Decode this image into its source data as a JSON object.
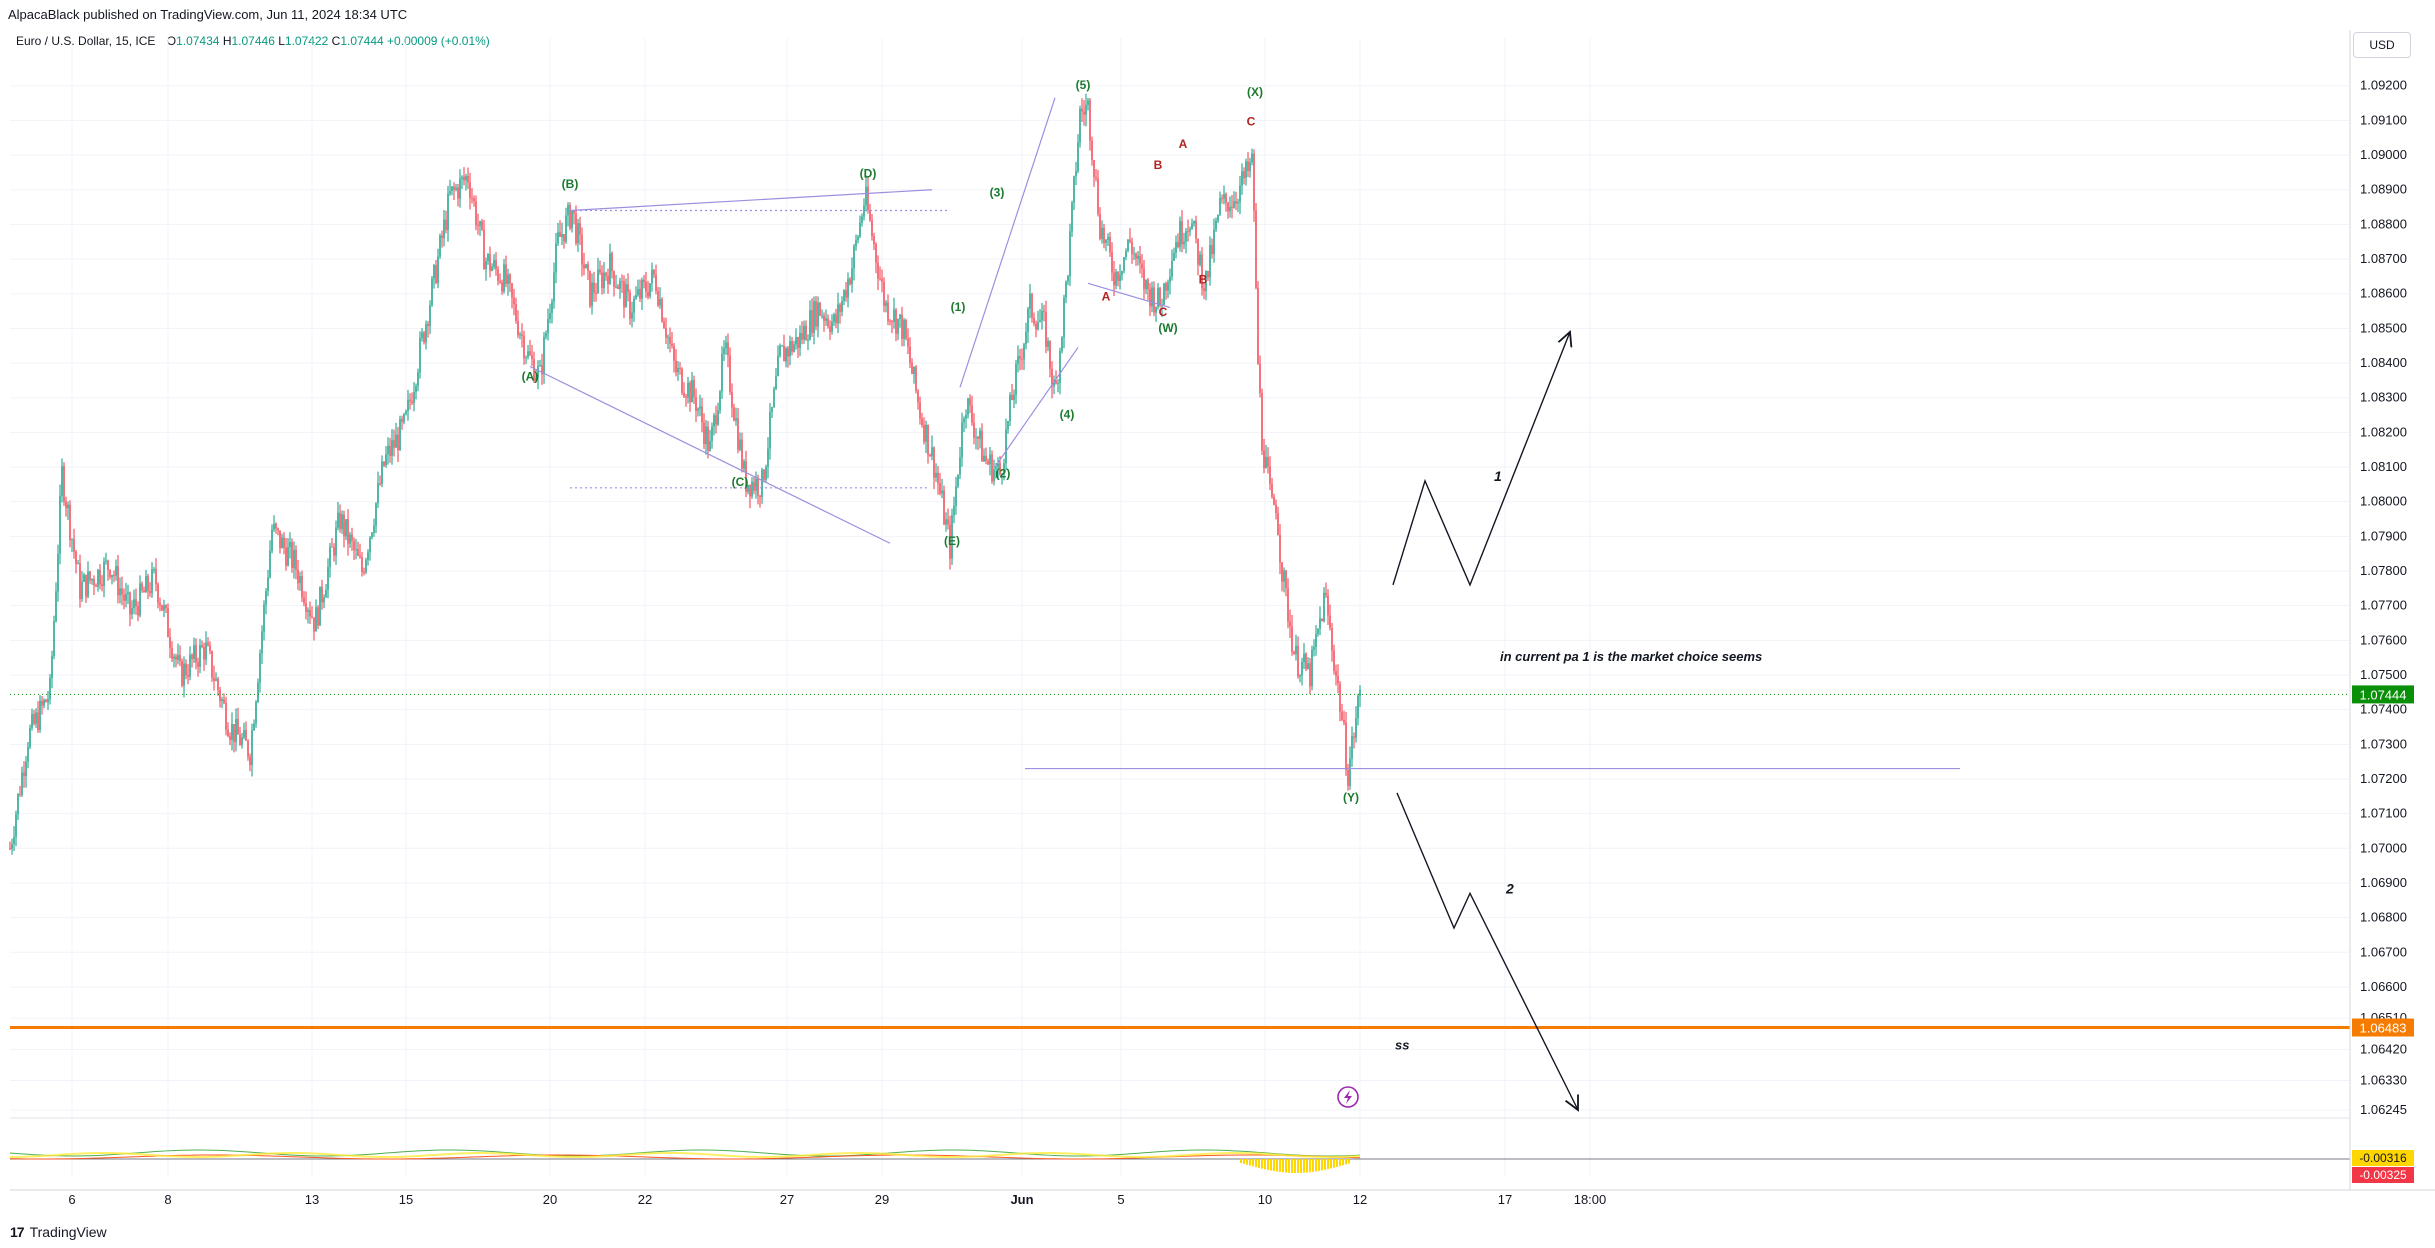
{
  "header": {
    "publisher": "AlpacaBlack published on TradingView.com, Jun 11, 2024 18:34 UTC",
    "symbol": "Euro / U.S. Dollar, 15, ICE",
    "ohlc": {
      "o_label": "O",
      "o": "1.07434",
      "h_label": "H",
      "h": "1.07446",
      "l_label": "L",
      "l": "1.07422",
      "c_label": "C",
      "c": "1.07444",
      "change": "+0.00009 (+0.01%)"
    },
    "currency": "USD"
  },
  "footer": {
    "logo": "17",
    "brand": "TradingView"
  },
  "colors": {
    "up": "#089981",
    "down": "#f23645",
    "wave_label": "#1b7a2f",
    "sub_wave_label": "#b22222",
    "trendline": "#9c8fe0",
    "orange_level": "#f57c00",
    "price_tag": "#0a8f08",
    "text": "#131722"
  },
  "chart_data": {
    "type": "candlestick",
    "symbol": "Euro / U.S. Dollar",
    "interval": "15",
    "ylim": [
      1.06245,
      1.0928
    ],
    "y_ticks": [
      "1.09200",
      "1.09100",
      "1.09000",
      "1.08900",
      "1.08800",
      "1.08700",
      "1.08600",
      "1.08500",
      "1.08400",
      "1.08300",
      "1.08200",
      "1.08100",
      "1.08000",
      "1.07900",
      "1.07800",
      "1.07700",
      "1.07600",
      "1.07500",
      "1.07400",
      "1.07300",
      "1.07200",
      "1.07100",
      "1.07000",
      "1.06900",
      "1.06800",
      "1.06700",
      "1.06600",
      "1.06510",
      "1.06420",
      "1.06330",
      "1.06245"
    ],
    "x_ticks": [
      "6",
      "8",
      "13",
      "15",
      "20",
      "22",
      "27",
      "29",
      "Jun",
      "5",
      "10",
      "12",
      "17",
      "18:00"
    ],
    "price_path": [
      [
        0,
        1.07
      ],
      [
        18,
        1.0732
      ],
      [
        40,
        1.0745
      ],
      [
        52,
        1.0808
      ],
      [
        70,
        1.0775
      ],
      [
        100,
        1.0782
      ],
      [
        120,
        1.0768
      ],
      [
        145,
        1.0778
      ],
      [
        170,
        1.075
      ],
      [
        195,
        1.0758
      ],
      [
        220,
        1.0735
      ],
      [
        240,
        1.0728
      ],
      [
        262,
        1.0792
      ],
      [
        285,
        1.0782
      ],
      [
        305,
        1.0765
      ],
      [
        330,
        1.0795
      ],
      [
        352,
        1.078
      ],
      [
        375,
        1.0812
      ],
      [
        395,
        1.0822
      ],
      [
        420,
        1.0858
      ],
      [
        440,
        1.0888
      ],
      [
        458,
        1.0894
      ],
      [
        475,
        1.087
      ],
      [
        495,
        1.0864
      ],
      [
        518,
        1.0842
      ],
      [
        530,
        1.0836
      ],
      [
        548,
        1.0875
      ],
      [
        562,
        1.0884
      ],
      [
        580,
        1.086
      ],
      [
        600,
        1.0868
      ],
      [
        620,
        1.0856
      ],
      [
        645,
        1.0865
      ],
      [
        665,
        1.0838
      ],
      [
        685,
        1.083
      ],
      [
        700,
        1.0815
      ],
      [
        715,
        1.0844
      ],
      [
        735,
        1.0806
      ],
      [
        752,
        1.0805
      ],
      [
        770,
        1.0842
      ],
      [
        790,
        1.0847
      ],
      [
        808,
        1.0856
      ],
      [
        825,
        1.0851
      ],
      [
        842,
        1.0868
      ],
      [
        855,
        1.0888
      ],
      [
        875,
        1.0857
      ],
      [
        893,
        1.085
      ],
      [
        910,
        1.0826
      ],
      [
        925,
        1.081
      ],
      [
        940,
        1.0787
      ],
      [
        955,
        1.083
      ],
      [
        975,
        1.0812
      ],
      [
        990,
        1.0808
      ],
      [
        1002,
        1.083
      ],
      [
        1020,
        1.0856
      ],
      [
        1035,
        1.085
      ],
      [
        1045,
        1.083
      ],
      [
        1058,
        1.0868
      ],
      [
        1070,
        1.0912
      ],
      [
        1078,
        1.0914
      ],
      [
        1090,
        1.088
      ],
      [
        1105,
        1.0865
      ],
      [
        1120,
        1.0875
      ],
      [
        1135,
        1.0862
      ],
      [
        1150,
        1.0857
      ],
      [
        1165,
        1.0875
      ],
      [
        1180,
        1.0882
      ],
      [
        1195,
        1.0862
      ],
      [
        1210,
        1.0885
      ],
      [
        1225,
        1.0888
      ],
      [
        1243,
        1.0898
      ],
      [
        1247,
        1.0846
      ],
      [
        1252,
        1.0818
      ],
      [
        1262,
        1.0798
      ],
      [
        1266,
        1.08
      ],
      [
        1272,
        1.078
      ],
      [
        1285,
        1.0755
      ],
      [
        1300,
        1.075
      ],
      [
        1315,
        1.0773
      ],
      [
        1330,
        1.0742
      ],
      [
        1338,
        1.0722
      ],
      [
        1350,
        1.0745
      ]
    ],
    "wave_labels": [
      {
        "text": "(A)",
        "price": 1.0835,
        "idx": 520,
        "color": "wave"
      },
      {
        "text": "(B)",
        "price": 1.08905,
        "idx": 560,
        "color": "wave"
      },
      {
        "text": "(C)",
        "price": 1.08045,
        "idx": 730,
        "color": "wave"
      },
      {
        "text": "(D)",
        "price": 1.08935,
        "idx": 858,
        "color": "wave"
      },
      {
        "text": "(E)",
        "price": 1.07875,
        "idx": 942,
        "color": "wave"
      },
      {
        "text": "(1)",
        "price": 1.0855,
        "idx": 948,
        "color": "wave"
      },
      {
        "text": "(2)",
        "price": 1.0807,
        "idx": 993,
        "color": "wave"
      },
      {
        "text": "(3)",
        "price": 1.0888,
        "idx": 987,
        "color": "wave"
      },
      {
        "text": "(4)",
        "price": 1.0824,
        "idx": 1057,
        "color": "wave"
      },
      {
        "text": "(5)",
        "price": 1.0919,
        "idx": 1073,
        "color": "wave"
      },
      {
        "text": "(W)",
        "price": 1.0849,
        "idx": 1158,
        "color": "wave"
      },
      {
        "text": "(X)",
        "price": 1.0917,
        "idx": 1245,
        "color": "wave"
      },
      {
        "text": "(Y)",
        "price": 1.07135,
        "idx": 1341,
        "color": "wave"
      },
      {
        "text": "A",
        "price": 1.0858,
        "idx": 1096,
        "color": "sub"
      },
      {
        "text": "B",
        "price": 1.0896,
        "idx": 1148,
        "color": "sub"
      },
      {
        "text": "C",
        "price": 1.08535,
        "idx": 1153,
        "color": "sub"
      },
      {
        "text": "A",
        "price": 1.0902,
        "idx": 1173,
        "color": "sub"
      },
      {
        "text": "B",
        "price": 1.0863,
        "idx": 1193,
        "color": "sub"
      },
      {
        "text": "C",
        "price": 1.09085,
        "idx": 1241,
        "color": "sub"
      }
    ],
    "trendlines": [
      {
        "from": [
          520,
          1.0839
        ],
        "to": [
          880,
          1.0788
        ],
        "style": "solid"
      },
      {
        "from": [
          560,
          1.0884
        ],
        "to": [
          922,
          1.089
        ],
        "style": "solid"
      },
      {
        "from": [
          560,
          1.0884
        ],
        "to": [
          940,
          1.0884
        ],
        "style": "dotted"
      },
      {
        "from": [
          560,
          1.0804
        ],
        "to": [
          918,
          1.0804
        ],
        "style": "dotted"
      },
      {
        "from": [
          950,
          1.0833
        ],
        "to": [
          1045,
          1.09165
        ],
        "style": "solid"
      },
      {
        "from": [
          985,
          1.081
        ],
        "to": [
          1068,
          1.08445
        ],
        "style": "solid"
      },
      {
        "from": [
          1078,
          1.0863
        ],
        "to": [
          1160,
          1.0856
        ],
        "style": "solid"
      },
      {
        "from": [
          1015,
          1.0723
        ],
        "to": [
          1950,
          1.0723
        ],
        "style": "solid"
      }
    ],
    "projections": [
      {
        "label": "1",
        "points": [
          [
            1383,
            1.0776
          ],
          [
            1415,
            1.0806
          ],
          [
            1460,
            1.0776
          ],
          [
            1560,
            1.0849
          ]
        ],
        "label_pos": [
          1484,
          1.0806
        ]
      },
      {
        "label": "2",
        "points": [
          [
            1387,
            1.0716
          ],
          [
            1444,
            1.0677
          ],
          [
            1460,
            1.0687
          ],
          [
            1568,
            1.06245
          ]
        ],
        "label_pos": [
          1496,
          1.0687
        ]
      }
    ],
    "annotations": [
      {
        "text": "in current pa 1 is the market choice seems",
        "idx": 1490,
        "price": 1.0754
      },
      {
        "text": "ss",
        "idx": 1385,
        "price": 1.0642
      }
    ],
    "levels": [
      {
        "price": 1.06483,
        "label": "1.06483",
        "color": "orange"
      },
      {
        "price": 1.07444,
        "label": "1.07444",
        "color": "current"
      }
    ],
    "indicator": {
      "values": [
        "-0.00316",
        "-0.00325"
      ]
    }
  }
}
